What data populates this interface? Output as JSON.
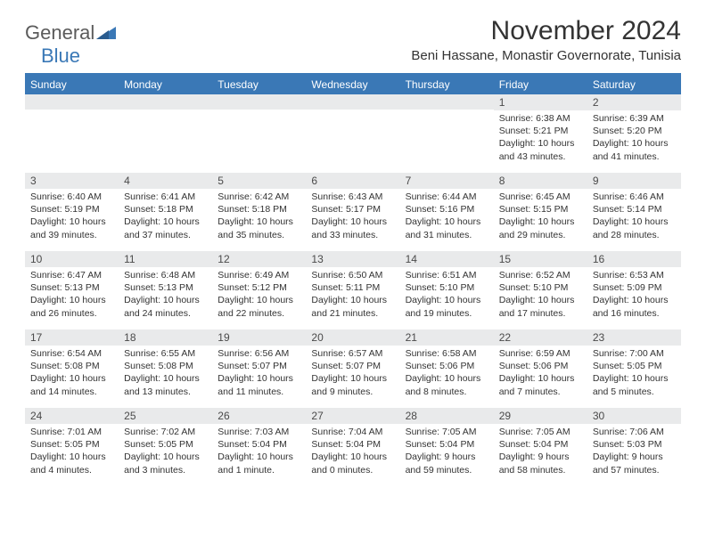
{
  "logo": {
    "part1": "General",
    "part2": "Blue"
  },
  "title": "November 2024",
  "location": "Beni Hassane, Monastir Governorate, Tunisia",
  "colors": {
    "brand_blue": "#3a78b6",
    "header_text": "#ffffff",
    "daynum_bg": "#e9eaeb",
    "text": "#333333",
    "logo_gray": "#5b5b5b"
  },
  "weekdays": [
    "Sunday",
    "Monday",
    "Tuesday",
    "Wednesday",
    "Thursday",
    "Friday",
    "Saturday"
  ],
  "weeks": [
    [
      {
        "n": "",
        "lines": []
      },
      {
        "n": "",
        "lines": []
      },
      {
        "n": "",
        "lines": []
      },
      {
        "n": "",
        "lines": []
      },
      {
        "n": "",
        "lines": []
      },
      {
        "n": "1",
        "lines": [
          "Sunrise: 6:38 AM",
          "Sunset: 5:21 PM",
          "Daylight: 10 hours and 43 minutes."
        ]
      },
      {
        "n": "2",
        "lines": [
          "Sunrise: 6:39 AM",
          "Sunset: 5:20 PM",
          "Daylight: 10 hours and 41 minutes."
        ]
      }
    ],
    [
      {
        "n": "3",
        "lines": [
          "Sunrise: 6:40 AM",
          "Sunset: 5:19 PM",
          "Daylight: 10 hours and 39 minutes."
        ]
      },
      {
        "n": "4",
        "lines": [
          "Sunrise: 6:41 AM",
          "Sunset: 5:18 PM",
          "Daylight: 10 hours and 37 minutes."
        ]
      },
      {
        "n": "5",
        "lines": [
          "Sunrise: 6:42 AM",
          "Sunset: 5:18 PM",
          "Daylight: 10 hours and 35 minutes."
        ]
      },
      {
        "n": "6",
        "lines": [
          "Sunrise: 6:43 AM",
          "Sunset: 5:17 PM",
          "Daylight: 10 hours and 33 minutes."
        ]
      },
      {
        "n": "7",
        "lines": [
          "Sunrise: 6:44 AM",
          "Sunset: 5:16 PM",
          "Daylight: 10 hours and 31 minutes."
        ]
      },
      {
        "n": "8",
        "lines": [
          "Sunrise: 6:45 AM",
          "Sunset: 5:15 PM",
          "Daylight: 10 hours and 29 minutes."
        ]
      },
      {
        "n": "9",
        "lines": [
          "Sunrise: 6:46 AM",
          "Sunset: 5:14 PM",
          "Daylight: 10 hours and 28 minutes."
        ]
      }
    ],
    [
      {
        "n": "10",
        "lines": [
          "Sunrise: 6:47 AM",
          "Sunset: 5:13 PM",
          "Daylight: 10 hours and 26 minutes."
        ]
      },
      {
        "n": "11",
        "lines": [
          "Sunrise: 6:48 AM",
          "Sunset: 5:13 PM",
          "Daylight: 10 hours and 24 minutes."
        ]
      },
      {
        "n": "12",
        "lines": [
          "Sunrise: 6:49 AM",
          "Sunset: 5:12 PM",
          "Daylight: 10 hours and 22 minutes."
        ]
      },
      {
        "n": "13",
        "lines": [
          "Sunrise: 6:50 AM",
          "Sunset: 5:11 PM",
          "Daylight: 10 hours and 21 minutes."
        ]
      },
      {
        "n": "14",
        "lines": [
          "Sunrise: 6:51 AM",
          "Sunset: 5:10 PM",
          "Daylight: 10 hours and 19 minutes."
        ]
      },
      {
        "n": "15",
        "lines": [
          "Sunrise: 6:52 AM",
          "Sunset: 5:10 PM",
          "Daylight: 10 hours and 17 minutes."
        ]
      },
      {
        "n": "16",
        "lines": [
          "Sunrise: 6:53 AM",
          "Sunset: 5:09 PM",
          "Daylight: 10 hours and 16 minutes."
        ]
      }
    ],
    [
      {
        "n": "17",
        "lines": [
          "Sunrise: 6:54 AM",
          "Sunset: 5:08 PM",
          "Daylight: 10 hours and 14 minutes."
        ]
      },
      {
        "n": "18",
        "lines": [
          "Sunrise: 6:55 AM",
          "Sunset: 5:08 PM",
          "Daylight: 10 hours and 13 minutes."
        ]
      },
      {
        "n": "19",
        "lines": [
          "Sunrise: 6:56 AM",
          "Sunset: 5:07 PM",
          "Daylight: 10 hours and 11 minutes."
        ]
      },
      {
        "n": "20",
        "lines": [
          "Sunrise: 6:57 AM",
          "Sunset: 5:07 PM",
          "Daylight: 10 hours and 9 minutes."
        ]
      },
      {
        "n": "21",
        "lines": [
          "Sunrise: 6:58 AM",
          "Sunset: 5:06 PM",
          "Daylight: 10 hours and 8 minutes."
        ]
      },
      {
        "n": "22",
        "lines": [
          "Sunrise: 6:59 AM",
          "Sunset: 5:06 PM",
          "Daylight: 10 hours and 7 minutes."
        ]
      },
      {
        "n": "23",
        "lines": [
          "Sunrise: 7:00 AM",
          "Sunset: 5:05 PM",
          "Daylight: 10 hours and 5 minutes."
        ]
      }
    ],
    [
      {
        "n": "24",
        "lines": [
          "Sunrise: 7:01 AM",
          "Sunset: 5:05 PM",
          "Daylight: 10 hours and 4 minutes."
        ]
      },
      {
        "n": "25",
        "lines": [
          "Sunrise: 7:02 AM",
          "Sunset: 5:05 PM",
          "Daylight: 10 hours and 3 minutes."
        ]
      },
      {
        "n": "26",
        "lines": [
          "Sunrise: 7:03 AM",
          "Sunset: 5:04 PM",
          "Daylight: 10 hours and 1 minute."
        ]
      },
      {
        "n": "27",
        "lines": [
          "Sunrise: 7:04 AM",
          "Sunset: 5:04 PM",
          "Daylight: 10 hours and 0 minutes."
        ]
      },
      {
        "n": "28",
        "lines": [
          "Sunrise: 7:05 AM",
          "Sunset: 5:04 PM",
          "Daylight: 9 hours and 59 minutes."
        ]
      },
      {
        "n": "29",
        "lines": [
          "Sunrise: 7:05 AM",
          "Sunset: 5:04 PM",
          "Daylight: 9 hours and 58 minutes."
        ]
      },
      {
        "n": "30",
        "lines": [
          "Sunrise: 7:06 AM",
          "Sunset: 5:03 PM",
          "Daylight: 9 hours and 57 minutes."
        ]
      }
    ]
  ]
}
